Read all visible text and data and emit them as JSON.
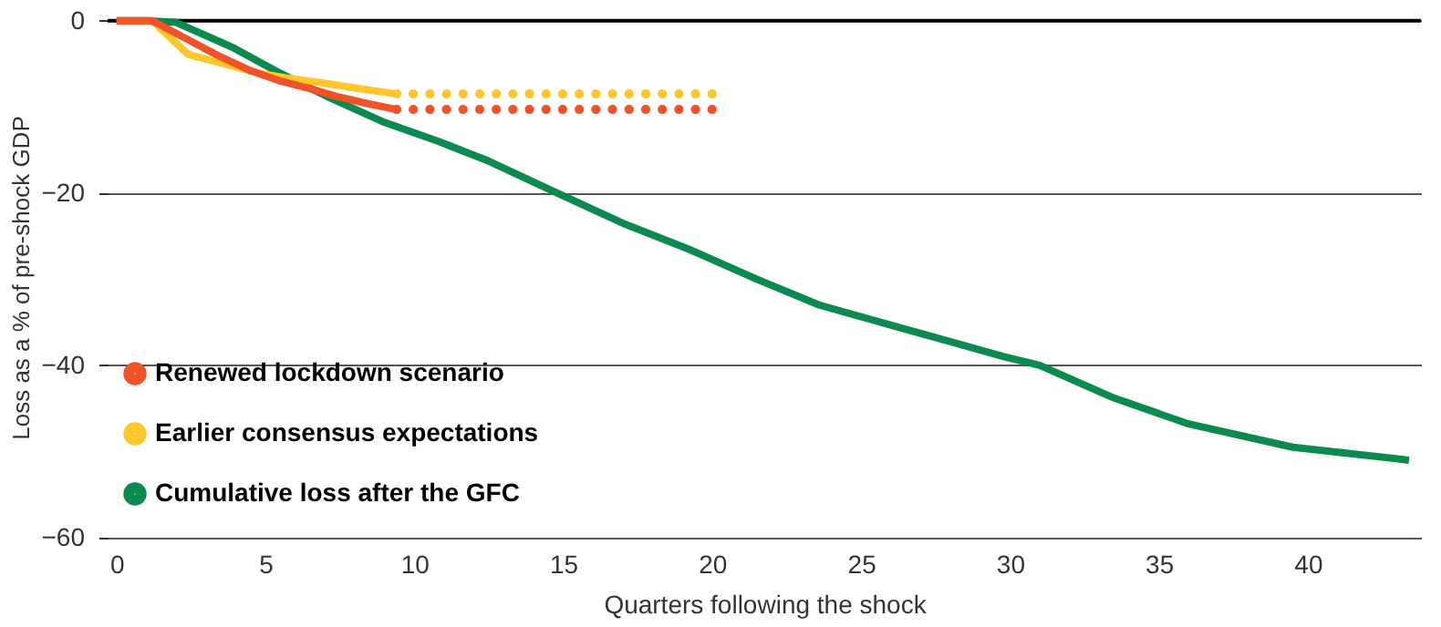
{
  "chart_data": {
    "type": "line",
    "xlabel": "Quarters following the shock",
    "ylabel": "Loss as a % of pre-shock GDP",
    "xlim": [
      -0.3,
      43.8
    ],
    "xticks": [
      0,
      5,
      10,
      15,
      20,
      25,
      30,
      35,
      40
    ],
    "ylim": [
      -60,
      0.5
    ],
    "yticks": [
      0,
      -20,
      -40,
      -60
    ],
    "grid": "y",
    "legend": "bottom left",
    "marker": "none",
    "ref_lines": [
      {
        "axis": "y",
        "value": 0,
        "color": "#000000"
      }
    ],
    "series": [
      {
        "name": "Renewed lockdown scenario",
        "color": "#f0522a",
        "line_style": "solid",
        "x": [
          0,
          1.2,
          2.4,
          3.5,
          4.5,
          5.5,
          6.5,
          7.4,
          8.4,
          9.4
        ],
        "values": [
          0,
          0,
          -2.2,
          -4.2,
          -5.8,
          -7.0,
          -7.9,
          -8.8,
          -9.6,
          -10.3
        ]
      },
      {
        "name": "Earlier consensus expectations",
        "color": "#ffc72c",
        "line_style": "solid",
        "x": [
          0,
          1.2,
          2.4,
          3.6,
          4.8,
          5.8,
          6.7,
          8,
          9.4
        ],
        "values": [
          0,
          0,
          -3.9,
          -5.0,
          -6.1,
          -6.7,
          -7.1,
          -7.8,
          -8.5
        ]
      },
      {
        "name": "Cumulative loss after the GFC",
        "color": "#0b8a4f",
        "line_style": "solid",
        "x": [
          0,
          1,
          2.0,
          3.9,
          5.5,
          7.2,
          9.0,
          10.8,
          12.5,
          14.8,
          17.0,
          19.2,
          21.5,
          23.6,
          26.7,
          29.8,
          31.0,
          33.5,
          36.0,
          39.5,
          43.4
        ],
        "values": [
          0,
          0,
          -0.2,
          -3.1,
          -6.1,
          -9.0,
          -11.8,
          -14.0,
          -16.3,
          -20.0,
          -23.5,
          -26.5,
          -30.0,
          -33.0,
          -36.0,
          -39.0,
          -40.0,
          -43.8,
          -46.8,
          -49.5,
          -51.0
        ]
      },
      {
        "color": "#f0522a",
        "line_style": "dotted",
        "x": [
          20,
          9.4
        ],
        "values": [
          -10.3,
          -10.3
        ]
      },
      {
        "color": "#ffc72c",
        "line_style": "dotted",
        "x": [
          20,
          9.4
        ],
        "values": [
          -8.5,
          -8.5
        ]
      }
    ]
  }
}
